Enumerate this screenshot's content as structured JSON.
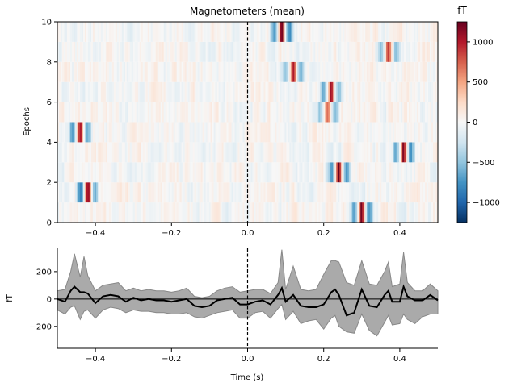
{
  "chart_data": [
    {
      "type": "heatmap",
      "title": "Magnetometers (mean)",
      "xlabel": "",
      "ylabel": "Epochs",
      "xlim": [
        -0.5,
        0.5
      ],
      "ylim": [
        0,
        10
      ],
      "xticks": [
        "−0.4",
        "−0.2",
        "0.0",
        "0.2",
        "0.4"
      ],
      "xtick_values": [
        -0.4,
        -0.2,
        0.0,
        0.2,
        0.4
      ],
      "yticks": [
        "0",
        "2",
        "4",
        "6",
        "8",
        "10"
      ],
      "ytick_values": [
        0,
        2,
        4,
        6,
        8,
        10
      ],
      "event_line_time": 0.0,
      "colormap": "RdBu_r",
      "clim": [
        -1250,
        1250
      ],
      "colorbar": {
        "label": "fT",
        "ticks": [
          "−1000",
          "−500",
          "0",
          "500",
          "1000"
        ],
        "tick_values": [
          -1000,
          -500,
          0,
          500,
          1000
        ]
      },
      "epoch_peaks": [
        {
          "epoch": 0,
          "time": 0.3,
          "amplitude": 1200
        },
        {
          "epoch": 1,
          "time": -0.42,
          "amplitude": 1200
        },
        {
          "epoch": 2,
          "time": 0.24,
          "amplitude": 1200
        },
        {
          "epoch": 3,
          "time": 0.41,
          "amplitude": 1200
        },
        {
          "epoch": 4,
          "time": -0.44,
          "amplitude": 1150
        },
        {
          "epoch": 5,
          "time": 0.21,
          "amplitude": 750
        },
        {
          "epoch": 6,
          "time": 0.22,
          "amplitude": 1050
        },
        {
          "epoch": 7,
          "time": 0.12,
          "amplitude": 950
        },
        {
          "epoch": 8,
          "time": 0.37,
          "amplitude": 1000
        },
        {
          "epoch": 9,
          "time": 0.09,
          "amplitude": 1250
        }
      ]
    },
    {
      "type": "area",
      "xlabel": "Time (s)",
      "ylabel": "fT",
      "xlim": [
        -0.5,
        0.5
      ],
      "ylim": [
        -360,
        370
      ],
      "xticks": [
        "−0.4",
        "−0.2",
        "0.0",
        "0.2",
        "0.4"
      ],
      "xtick_values": [
        -0.4,
        -0.2,
        0.0,
        0.2,
        0.4
      ],
      "yticks": [
        "−200",
        "0",
        "200"
      ],
      "ytick_values": [
        -200,
        0,
        200
      ],
      "event_line_time": 0.0,
      "colors": {
        "mean": "#000000",
        "band": "#aaaaaa",
        "band_edge": "#888888"
      },
      "series": {
        "time": [
          -0.5,
          -0.48,
          -0.465,
          -0.455,
          -0.44,
          -0.43,
          -0.42,
          -0.4,
          -0.38,
          -0.36,
          -0.34,
          -0.32,
          -0.3,
          -0.28,
          -0.26,
          -0.24,
          -0.22,
          -0.2,
          -0.18,
          -0.16,
          -0.14,
          -0.12,
          -0.1,
          -0.08,
          -0.06,
          -0.04,
          -0.02,
          0.0,
          0.02,
          0.04,
          0.06,
          0.08,
          0.09,
          0.1,
          0.12,
          0.14,
          0.16,
          0.18,
          0.2,
          0.22,
          0.23,
          0.24,
          0.26,
          0.28,
          0.3,
          0.32,
          0.34,
          0.36,
          0.37,
          0.38,
          0.4,
          0.41,
          0.42,
          0.44,
          0.46,
          0.48,
          0.5
        ],
        "mean": [
          0,
          -20,
          60,
          90,
          50,
          50,
          40,
          -30,
          20,
          30,
          20,
          -20,
          10,
          -10,
          0,
          -10,
          -10,
          -20,
          -10,
          0,
          -50,
          -60,
          -50,
          -10,
          0,
          10,
          -40,
          -40,
          -20,
          -10,
          -40,
          30,
          80,
          -20,
          30,
          -50,
          -60,
          -60,
          -40,
          50,
          70,
          30,
          -120,
          -100,
          70,
          -50,
          -60,
          30,
          60,
          -20,
          -20,
          90,
          20,
          -10,
          -10,
          30,
          -10
        ],
        "lower": [
          -80,
          -110,
          -60,
          -50,
          -150,
          -90,
          -80,
          -140,
          -80,
          -60,
          -70,
          -100,
          -80,
          -90,
          -90,
          -100,
          -100,
          -110,
          -110,
          -100,
          -130,
          -140,
          -120,
          -100,
          -90,
          -80,
          -140,
          -140,
          -100,
          -90,
          -140,
          -70,
          -40,
          -150,
          -90,
          -180,
          -160,
          -150,
          -220,
          -140,
          -120,
          -200,
          -240,
          -250,
          -110,
          -230,
          -270,
          -170,
          -120,
          -190,
          -180,
          -110,
          -150,
          -180,
          -130,
          -110,
          -110
        ],
        "upper": [
          60,
          70,
          200,
          330,
          160,
          310,
          170,
          60,
          100,
          110,
          120,
          60,
          80,
          60,
          70,
          60,
          60,
          50,
          60,
          80,
          20,
          10,
          20,
          60,
          80,
          90,
          50,
          60,
          70,
          70,
          40,
          120,
          360,
          70,
          240,
          70,
          60,
          70,
          180,
          280,
          280,
          270,
          120,
          100,
          280,
          110,
          100,
          200,
          270,
          90,
          110,
          340,
          120,
          60,
          60,
          110,
          60
        ]
      }
    }
  ]
}
